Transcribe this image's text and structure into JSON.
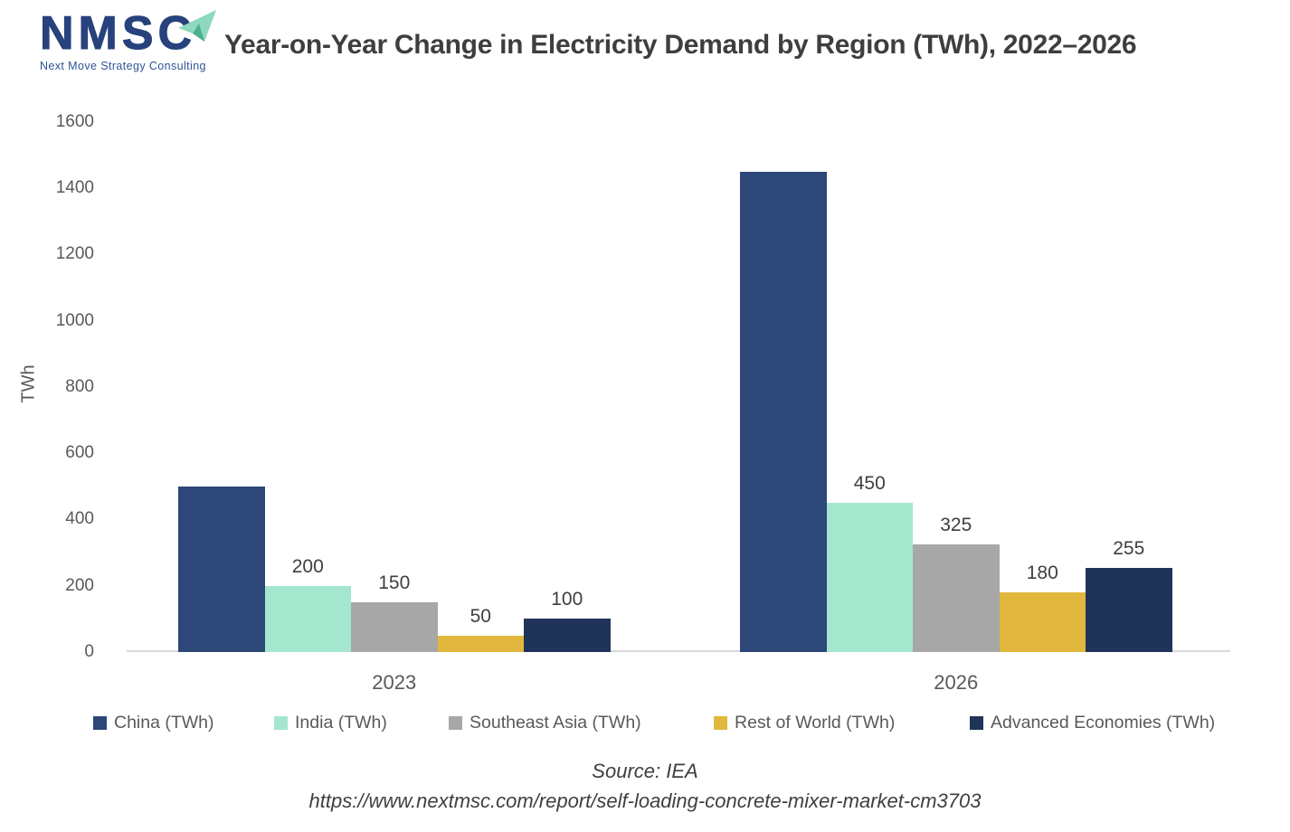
{
  "logo": {
    "acronym": "NMSC",
    "tagline": "Next Move Strategy Consulting",
    "brand_blue": "#27427D",
    "accent_teal_light": "#8ED8BE",
    "accent_teal_dark": "#4FAE92"
  },
  "header": {
    "title": "Year-on-Year Change in Electricity Demand by Region (TWh), 2022–2026"
  },
  "footer": {
    "source": "Source: IEA",
    "url": "https://www.nextmsc.com/report/self-loading-concrete-mixer-market-cm3703"
  },
  "text_colors": {
    "title": "#3E3E3E",
    "axis": "#595959",
    "data_label": "#3F3F3F",
    "source": "#3F3F3F",
    "baseline": "#D9D9D9"
  },
  "chart_data": {
    "type": "bar",
    "title": "Year-on-Year Change in Electricity Demand by Region (TWh), 2022–2026",
    "xlabel": "",
    "ylabel": "TWh",
    "ylim": [
      0,
      1600
    ],
    "ytick_step": 200,
    "yticks": [
      "0",
      "200",
      "400",
      "600",
      "800",
      "1000",
      "1200",
      "1400",
      "1600"
    ],
    "grid": false,
    "legend_position": "bottom",
    "categories": [
      "2023",
      "2026"
    ],
    "series": [
      {
        "name": "China (TWh)",
        "color": "#2C4778",
        "values": [
          500,
          1450
        ],
        "value_labels": [
          "",
          ""
        ]
      },
      {
        "name": "India (TWh)",
        "color": "#A5E6CE",
        "values": [
          200,
          450
        ],
        "value_labels": [
          "200",
          "450"
        ]
      },
      {
        "name": "Southeast Asia (TWh)",
        "color": "#A7A7A7",
        "values": [
          150,
          325
        ],
        "value_labels": [
          "150",
          "325"
        ]
      },
      {
        "name": "Rest of World (TWh)",
        "color": "#E1B83D",
        "values": [
          50,
          180
        ],
        "value_labels": [
          "50",
          "180"
        ]
      },
      {
        "name": "Advanced Economies (TWh)",
        "color": "#20345A",
        "values": [
          100,
          255
        ],
        "value_labels": [
          "100",
          "255"
        ]
      }
    ],
    "annotations": "China bars are printed without numeric data labels; 500 and 1450 estimated from the y-axis"
  }
}
